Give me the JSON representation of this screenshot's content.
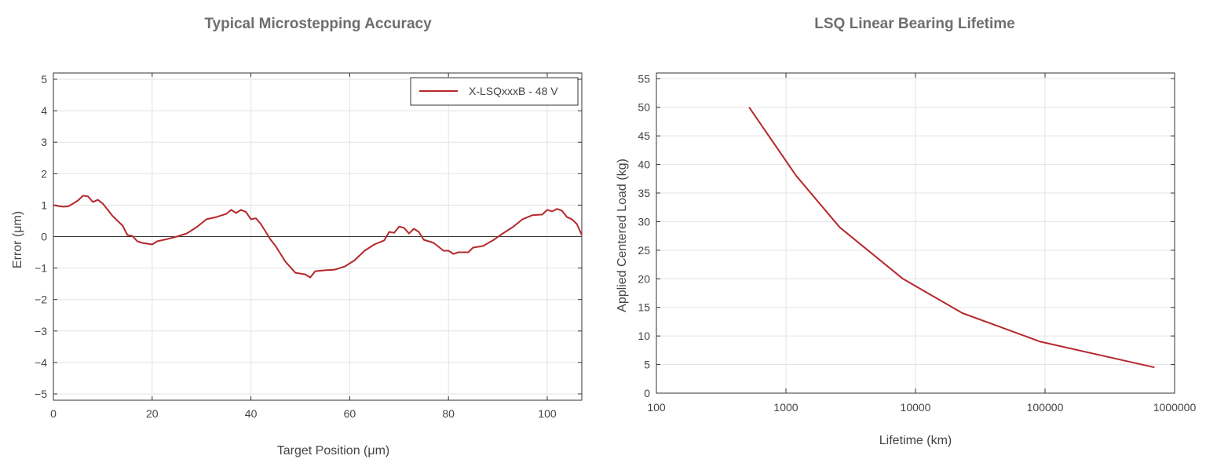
{
  "chart_data": [
    {
      "type": "line",
      "title": "Typical Microstepping Accuracy",
      "xlabel": "Target Position (μm)",
      "ylabel": "Error (μm)",
      "xlim": [
        0,
        107
      ],
      "ylim": [
        -5.2,
        5.2
      ],
      "x_ticks": [
        0,
        20,
        40,
        60,
        80,
        100
      ],
      "y_ticks": [
        -5,
        -4,
        -3,
        -2,
        -1,
        0,
        1,
        2,
        3,
        4,
        5
      ],
      "grid": true,
      "zero_line": true,
      "legend": "top-right",
      "color": "#b5282b",
      "series": [
        {
          "name": "X-LSQxxxB - 48 V",
          "x": [
            0,
            1,
            2,
            3,
            4,
            5,
            6,
            7,
            8,
            9,
            10,
            12,
            14,
            15,
            16,
            17,
            18,
            20,
            21,
            23,
            25,
            27,
            29,
            31,
            33,
            35,
            36,
            37,
            38,
            39,
            40,
            41,
            42,
            43,
            44,
            45,
            47,
            49,
            51,
            52,
            53,
            55,
            57,
            59,
            61,
            63,
            65,
            67,
            68,
            69,
            70,
            71,
            72,
            73,
            74,
            75,
            77,
            79,
            80,
            81,
            82,
            83,
            84,
            85,
            87,
            89,
            91,
            93,
            95,
            97,
            99,
            100,
            101,
            102,
            103,
            104,
            105,
            106,
            107
          ],
          "y": [
            1.0,
            0.97,
            0.95,
            0.96,
            1.05,
            1.15,
            1.3,
            1.28,
            1.1,
            1.17,
            1.05,
            0.65,
            0.35,
            0.05,
            0.02,
            -0.15,
            -0.2,
            -0.25,
            -0.15,
            -0.08,
            0.0,
            0.1,
            0.3,
            0.55,
            0.62,
            0.72,
            0.85,
            0.75,
            0.85,
            0.78,
            0.55,
            0.58,
            0.4,
            0.15,
            -0.1,
            -0.3,
            -0.8,
            -1.15,
            -1.2,
            -1.3,
            -1.1,
            -1.07,
            -1.05,
            -0.95,
            -0.75,
            -0.45,
            -0.25,
            -0.12,
            0.15,
            0.12,
            0.32,
            0.28,
            0.1,
            0.25,
            0.15,
            -0.1,
            -0.2,
            -0.45,
            -0.45,
            -0.55,
            -0.5,
            -0.5,
            -0.5,
            -0.35,
            -0.3,
            -0.12,
            0.1,
            0.3,
            0.55,
            0.68,
            0.7,
            0.85,
            0.8,
            0.88,
            0.82,
            0.62,
            0.55,
            0.4,
            0.05
          ]
        }
      ]
    },
    {
      "type": "line",
      "title": "LSQ Linear Bearing Lifetime",
      "xlabel": "Lifetime (km)",
      "ylabel": "Applied Centered Load (kg)",
      "xscale": "log",
      "xlim": [
        100,
        1000000
      ],
      "ylim": [
        0,
        56
      ],
      "x_ticks": [
        100,
        1000,
        10000,
        100000,
        1000000
      ],
      "x_tick_labels": [
        "100",
        "1000",
        "10000",
        "100000",
        "1000000"
      ],
      "y_ticks": [
        0,
        5,
        10,
        15,
        20,
        25,
        30,
        35,
        40,
        45,
        50,
        55
      ],
      "grid": true,
      "color": "#b5282b",
      "series": [
        {
          "x": [
            520,
            1200,
            2600,
            8000,
            23000,
            92000,
            700000
          ],
          "y": [
            50,
            38,
            29,
            20,
            14,
            9,
            4.5
          ]
        }
      ]
    }
  ]
}
